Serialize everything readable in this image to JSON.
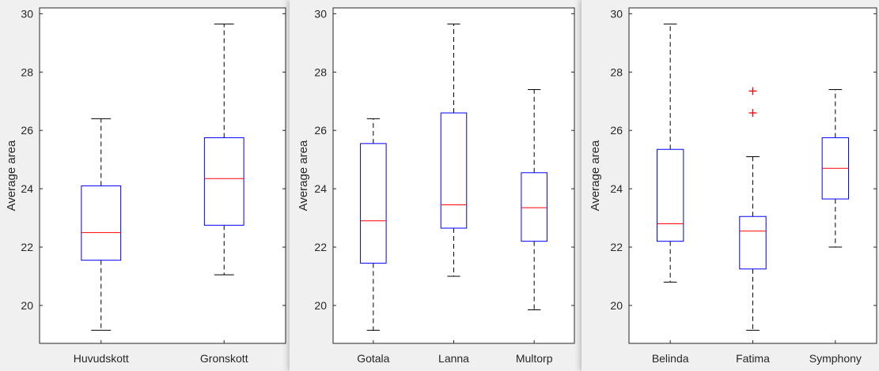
{
  "colors": {
    "box": "#0000ff",
    "median": "#ff0000",
    "whisker": "#000000",
    "outlier": "#ff0000",
    "axes_bg": "#ffffff"
  },
  "chart_data": [
    {
      "type": "box",
      "ylabel": "Average area",
      "ylim": [
        18.7,
        30.2
      ],
      "yticks": [
        20,
        22,
        24,
        26,
        28,
        30
      ],
      "grid": false,
      "categories": [
        "Huvudskott",
        "Gronskott"
      ],
      "boxes": [
        {
          "name": "Huvudskott",
          "whisker_low": 19.15,
          "q1": 21.55,
          "median": 22.5,
          "q3": 24.1,
          "whisker_high": 26.4,
          "outliers": []
        },
        {
          "name": "Gronskott",
          "whisker_low": 21.05,
          "q1": 22.75,
          "median": 24.35,
          "q3": 25.75,
          "whisker_high": 29.65,
          "outliers": []
        }
      ]
    },
    {
      "type": "box",
      "ylabel": "Average area",
      "ylim": [
        18.7,
        30.2
      ],
      "yticks": [
        20,
        22,
        24,
        26,
        28,
        30
      ],
      "grid": false,
      "categories": [
        "Gotala",
        "Lanna",
        "Multorp"
      ],
      "boxes": [
        {
          "name": "Gotala",
          "whisker_low": 19.15,
          "q1": 21.45,
          "median": 22.9,
          "q3": 25.55,
          "whisker_high": 26.4,
          "outliers": []
        },
        {
          "name": "Lanna",
          "whisker_low": 21.0,
          "q1": 22.65,
          "median": 23.45,
          "q3": 26.6,
          "whisker_high": 29.65,
          "outliers": []
        },
        {
          "name": "Multorp",
          "whisker_low": 19.85,
          "q1": 22.2,
          "median": 23.35,
          "q3": 24.55,
          "whisker_high": 27.4,
          "outliers": []
        }
      ]
    },
    {
      "type": "box",
      "ylabel": "Average area",
      "ylim": [
        18.7,
        30.2
      ],
      "yticks": [
        20,
        22,
        24,
        26,
        28,
        30
      ],
      "grid": false,
      "categories": [
        "Belinda",
        "Fatima",
        "Symphony"
      ],
      "boxes": [
        {
          "name": "Belinda",
          "whisker_low": 20.8,
          "q1": 22.2,
          "median": 22.8,
          "q3": 25.35,
          "whisker_high": 29.65,
          "outliers": []
        },
        {
          "name": "Fatima",
          "whisker_low": 19.15,
          "q1": 21.25,
          "median": 22.55,
          "q3": 23.05,
          "whisker_high": 25.1,
          "outliers": [
            26.6,
            27.35
          ]
        },
        {
          "name": "Symphony",
          "whisker_low": 22.0,
          "q1": 23.65,
          "median": 24.7,
          "q3": 25.75,
          "whisker_high": 27.4,
          "outliers": []
        }
      ]
    }
  ]
}
